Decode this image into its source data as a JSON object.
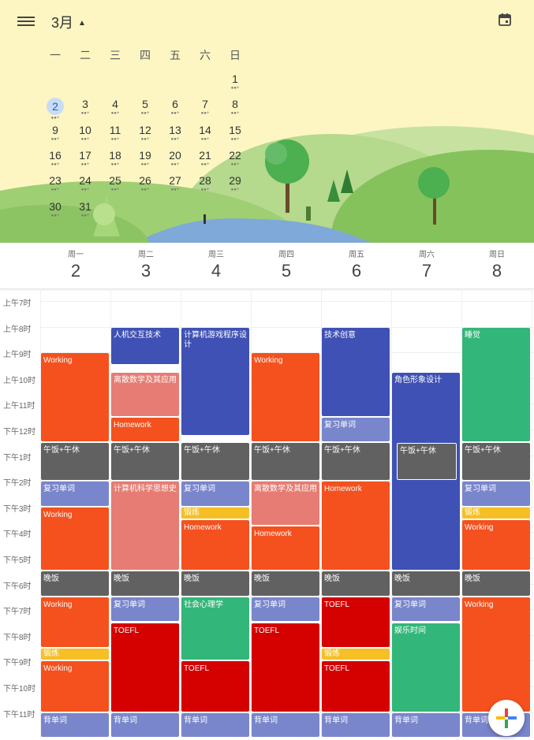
{
  "header": {
    "month": "3月",
    "weekdays": [
      "一",
      "二",
      "三",
      "四",
      "五",
      "六",
      "日"
    ],
    "days": [
      "1",
      "2",
      "3",
      "4",
      "5",
      "6",
      "7",
      "8",
      "9",
      "10",
      "11",
      "12",
      "13",
      "14",
      "15",
      "16",
      "17",
      "18",
      "19",
      "20",
      "21",
      "22",
      "23",
      "24",
      "25",
      "26",
      "27",
      "28",
      "29",
      "30",
      "31"
    ],
    "selected_day": "2",
    "dots": "●●+"
  },
  "week": {
    "columns": [
      {
        "label": "周一",
        "num": "2"
      },
      {
        "label": "周二",
        "num": "3"
      },
      {
        "label": "周三",
        "num": "4"
      },
      {
        "label": "周四",
        "num": "5"
      },
      {
        "label": "周五",
        "num": "6"
      },
      {
        "label": "周六",
        "num": "7"
      },
      {
        "label": "周日",
        "num": "8"
      }
    ]
  },
  "times": [
    "上午7时",
    "上午8时",
    "上午9时",
    "上午10时",
    "上午11时",
    "下午12时",
    "下午1时",
    "下午2时",
    "下午3时",
    "下午4时",
    "下午5时",
    "下午6时",
    "下午7时",
    "下午8时",
    "下午9时",
    "下午10时",
    "下午11时"
  ],
  "colors": {
    "orange": "#f4511e",
    "gray": "#616161",
    "lavender": "#7986cb",
    "blueberry": "#3f51b5",
    "flamingo": "#e67c73",
    "banana": "#f6bf26",
    "sage": "#33b679",
    "tomato": "#d50000"
  },
  "events": [
    {
      "day": 0,
      "start": 9,
      "end": 12.5,
      "title": "Working",
      "color": "orange"
    },
    {
      "day": 0,
      "start": 12.5,
      "end": 14,
      "title": "午饭+午休",
      "color": "gray"
    },
    {
      "day": 0,
      "start": 14,
      "end": 15,
      "title": "复习单词",
      "color": "lavender"
    },
    {
      "day": 0,
      "start": 15,
      "end": 17.5,
      "title": "Working",
      "color": "orange"
    },
    {
      "day": 0,
      "start": 17.5,
      "end": 18.5,
      "title": "晚饭",
      "color": "gray"
    },
    {
      "day": 0,
      "start": 18.5,
      "end": 20.5,
      "title": "Working",
      "color": "orange"
    },
    {
      "day": 0,
      "start": 20.5,
      "end": 21,
      "title": "锻炼",
      "color": "banana"
    },
    {
      "day": 0,
      "start": 21,
      "end": 23,
      "title": "Working",
      "color": "orange"
    },
    {
      "day": 0,
      "start": 23,
      "end": 24,
      "title": "背单词",
      "color": "lavender"
    },
    {
      "day": 1,
      "start": 8,
      "end": 9.5,
      "title": "人机交互技术",
      "color": "blueberry"
    },
    {
      "day": 1,
      "start": 9.75,
      "end": 11.5,
      "title": "离散数学及其应用",
      "color": "flamingo"
    },
    {
      "day": 1,
      "start": 11.5,
      "end": 12.5,
      "title": "Homework",
      "color": "orange"
    },
    {
      "day": 1,
      "start": 12.5,
      "end": 14,
      "title": "午饭+午休",
      "color": "gray"
    },
    {
      "day": 1,
      "start": 14,
      "end": 17.5,
      "title": "计算机科学思想史",
      "color": "flamingo"
    },
    {
      "day": 1,
      "start": 17.5,
      "end": 18.5,
      "title": "晚饭",
      "color": "gray"
    },
    {
      "day": 1,
      "start": 18.5,
      "end": 19.5,
      "title": "复习单词",
      "color": "lavender"
    },
    {
      "day": 1,
      "start": 19.5,
      "end": 23,
      "title": "TOEFL",
      "color": "tomato"
    },
    {
      "day": 1,
      "start": 23,
      "end": 24,
      "title": "背单词",
      "color": "lavender"
    },
    {
      "day": 2,
      "start": 8,
      "end": 12.25,
      "title": "计算机游戏程序设计",
      "color": "blueberry"
    },
    {
      "day": 2,
      "start": 12.5,
      "end": 14,
      "title": "午饭+午休",
      "color": "gray"
    },
    {
      "day": 2,
      "start": 14,
      "end": 15,
      "title": "复习单词",
      "color": "lavender"
    },
    {
      "day": 2,
      "start": 15,
      "end": 15.5,
      "title": "锻炼",
      "color": "banana"
    },
    {
      "day": 2,
      "start": 15.5,
      "end": 17.5,
      "title": "Homework",
      "color": "orange"
    },
    {
      "day": 2,
      "start": 17.5,
      "end": 18.5,
      "title": "晚饭",
      "color": "gray"
    },
    {
      "day": 2,
      "start": 18.5,
      "end": 21,
      "title": "社会心理学",
      "color": "sage"
    },
    {
      "day": 2,
      "start": 21,
      "end": 23,
      "title": "TOEFL",
      "color": "tomato"
    },
    {
      "day": 2,
      "start": 23,
      "end": 24,
      "title": "背单词",
      "color": "lavender"
    },
    {
      "day": 3,
      "start": 9,
      "end": 12.5,
      "title": "Working",
      "color": "orange"
    },
    {
      "day": 3,
      "start": 12.5,
      "end": 14,
      "title": "午饭+午休",
      "color": "gray"
    },
    {
      "day": 3,
      "start": 14,
      "end": 15.75,
      "title": "离散数学及其应用",
      "color": "flamingo"
    },
    {
      "day": 3,
      "start": 15.75,
      "end": 17.5,
      "title": "Homework",
      "color": "orange"
    },
    {
      "day": 3,
      "start": 17.5,
      "end": 18.5,
      "title": "晚饭",
      "color": "gray"
    },
    {
      "day": 3,
      "start": 18.5,
      "end": 19.5,
      "title": "复习单词",
      "color": "lavender"
    },
    {
      "day": 3,
      "start": 19.5,
      "end": 23,
      "title": "TOEFL",
      "color": "tomato"
    },
    {
      "day": 3,
      "start": 23,
      "end": 24,
      "title": "背单词",
      "color": "lavender"
    },
    {
      "day": 4,
      "start": 8,
      "end": 11.5,
      "title": "技术创意",
      "color": "blueberry"
    },
    {
      "day": 4,
      "start": 11.5,
      "end": 12.5,
      "title": "复习单词",
      "color": "lavender"
    },
    {
      "day": 4,
      "start": 12.5,
      "end": 14,
      "title": "午饭+午休",
      "color": "gray"
    },
    {
      "day": 4,
      "start": 14,
      "end": 17.5,
      "title": "Homework",
      "color": "orange"
    },
    {
      "day": 4,
      "start": 17.5,
      "end": 18.5,
      "title": "晚饭",
      "color": "gray"
    },
    {
      "day": 4,
      "start": 18.5,
      "end": 20.5,
      "title": "TOEFL",
      "color": "tomato"
    },
    {
      "day": 4,
      "start": 20.5,
      "end": 21,
      "title": "锻炼",
      "color": "banana"
    },
    {
      "day": 4,
      "start": 21,
      "end": 23,
      "title": "TOEFL",
      "color": "tomato"
    },
    {
      "day": 4,
      "start": 23,
      "end": 24,
      "title": "背单词",
      "color": "lavender"
    },
    {
      "day": 5,
      "start": 9.75,
      "end": 17.5,
      "title": "角色形象设计",
      "color": "blueberry"
    },
    {
      "day": 5,
      "start": 12.5,
      "end": 14,
      "title": "午饭+午休",
      "color": "gray",
      "overlay": true
    },
    {
      "day": 5,
      "start": 17.5,
      "end": 18.5,
      "title": "晚饭",
      "color": "gray"
    },
    {
      "day": 5,
      "start": 18.5,
      "end": 19.5,
      "title": "复习单词",
      "color": "lavender"
    },
    {
      "day": 5,
      "start": 19.5,
      "end": 23,
      "title": "娱乐时间",
      "color": "sage"
    },
    {
      "day": 5,
      "start": 23,
      "end": 24,
      "title": "背单词",
      "color": "lavender"
    },
    {
      "day": 6,
      "start": 8,
      "end": 12.5,
      "title": "睡觉",
      "color": "sage"
    },
    {
      "day": 6,
      "start": 12.5,
      "end": 14,
      "title": "午饭+午休",
      "color": "gray"
    },
    {
      "day": 6,
      "start": 14,
      "end": 15,
      "title": "复习单词",
      "color": "lavender"
    },
    {
      "day": 6,
      "start": 15,
      "end": 15.5,
      "title": "锻炼",
      "color": "banana"
    },
    {
      "day": 6,
      "start": 15.5,
      "end": 17.5,
      "title": "Working",
      "color": "orange"
    },
    {
      "day": 6,
      "start": 17.5,
      "end": 18.5,
      "title": "晚饭",
      "color": "gray"
    },
    {
      "day": 6,
      "start": 18.5,
      "end": 23,
      "title": "Working",
      "color": "orange"
    },
    {
      "day": 6,
      "start": 23,
      "end": 24,
      "title": "背单词",
      "color": "lavender"
    }
  ],
  "fab": {
    "icon": "plus-icon"
  }
}
